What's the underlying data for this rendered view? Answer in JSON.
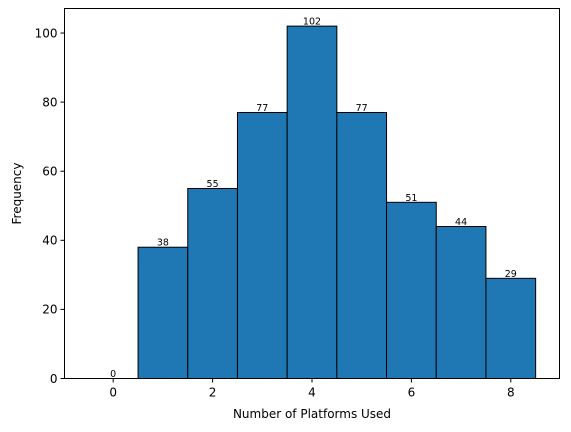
{
  "chart_data": {
    "type": "bar",
    "title": "",
    "xlabel": "Number of Platforms Used",
    "ylabel": "Frequency",
    "x": [
      0,
      1,
      2,
      3,
      4,
      5,
      6,
      7,
      8
    ],
    "values": [
      0,
      38,
      55,
      77,
      102,
      77,
      51,
      44,
      29
    ],
    "bar_width": 1.0,
    "xlim": [
      -0.98,
      8.98
    ],
    "ylim": [
      0,
      107.1
    ],
    "xticks": [
      0,
      2,
      4,
      6,
      8
    ],
    "xtick_labels": [
      "0",
      "2",
      "4",
      "6",
      "8"
    ],
    "yticks": [
      0,
      20,
      40,
      60,
      80,
      100
    ],
    "ytick_labels": [
      "0",
      "20",
      "40",
      "60",
      "80",
      "100"
    ],
    "grid": false,
    "legend": "none",
    "colors": {
      "bar_fill": "#1f77b4",
      "bar_edge": "#000000",
      "axis": "#000000",
      "background": "#ffffff"
    }
  }
}
